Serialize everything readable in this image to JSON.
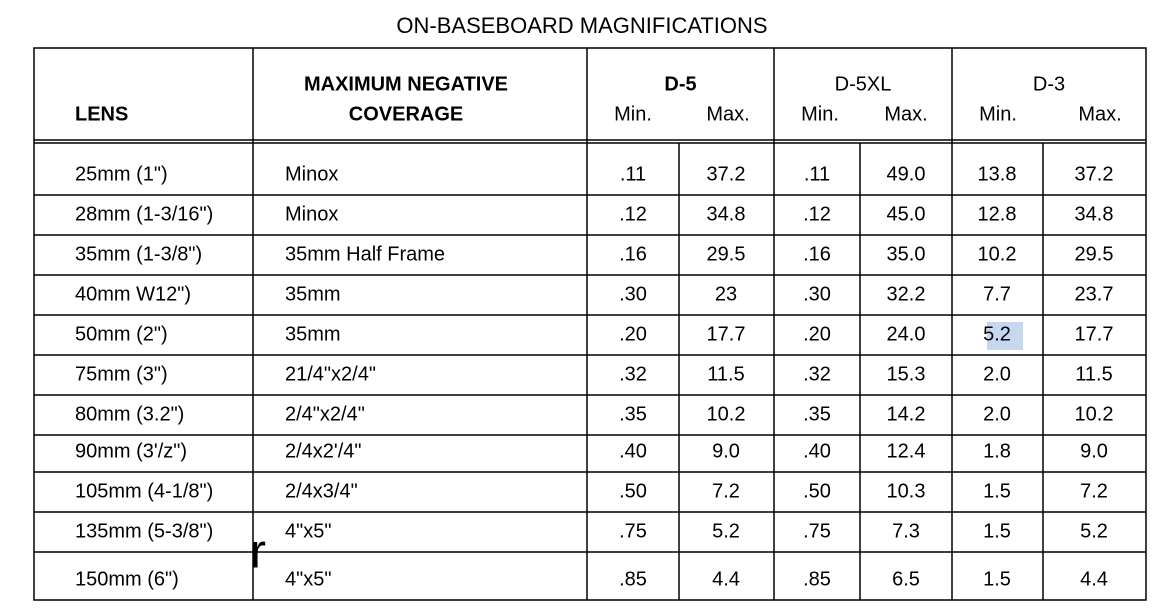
{
  "title": "ON-BASEBOARD MAGNIFICATIONS",
  "table": {
    "header": {
      "lens": "LENS",
      "coverage": [
        "MAXIMUM NEGATIVE",
        "COVERAGE"
      ],
      "groups": [
        {
          "name": "D-5",
          "min": "Min.",
          "max": "Max."
        },
        {
          "name": "D-5XL",
          "min": "Min.",
          "max": "Max."
        },
        {
          "name": "D-3",
          "min": "Min.",
          "max": "Max."
        }
      ]
    },
    "rows": [
      [
        "25mm (1\")",
        "Minox",
        ".11",
        "37.2",
        ".11",
        "49.0",
        "13.8",
        "37.2"
      ],
      [
        "28mm (1-3/16\")",
        "Minox",
        ".12",
        "34.8",
        ".12",
        "45.0",
        "12.8",
        "34.8"
      ],
      [
        "35mm (1-3/8\")",
        "35mm Half Frame",
        ".16",
        "29.5",
        ".16",
        "35.0",
        "10.2",
        "29.5"
      ],
      [
        "40mm W12\")",
        "35mm",
        ".30",
        "23",
        ".30",
        "32.2",
        "7.7",
        "23.7"
      ],
      [
        "50mm (2\")",
        "35mm",
        ".20",
        "17.7",
        ".20",
        "24.0",
        "5.2",
        "17.7"
      ],
      [
        "75mm (3\")",
        "21/4\"x2/4\"",
        ".32",
        "11.5",
        ".32",
        "15.3",
        "2.0",
        "11.5"
      ],
      [
        "80mm (3.2\")",
        "2/4\"x2/4\"",
        ".35",
        "10.2",
        ".35",
        "14.2",
        "2.0",
        "10.2"
      ],
      [
        "90mm (3'/z\")",
        "2/4x2'/4\"",
        ".40",
        "9.0",
        ".40",
        "12.4",
        "1.8",
        "9.0"
      ],
      [
        "105mm (4-1/8\")",
        "2/4x3/4\"",
        ".50",
        "7.2",
        ".50",
        "10.3",
        "1.5",
        "7.2"
      ],
      [
        "135mm (5-3/8\")",
        "4\"x5\"",
        ".75",
        "5.2",
        ".75",
        "7.3",
        "1.5",
        "5.2"
      ],
      [
        "150mm (6\")",
        "4\"x5\"",
        ".85",
        "4.4",
        ".85",
        "6.5",
        "1.5",
        "4.4"
      ]
    ]
  },
  "stray_mark": "r"
}
